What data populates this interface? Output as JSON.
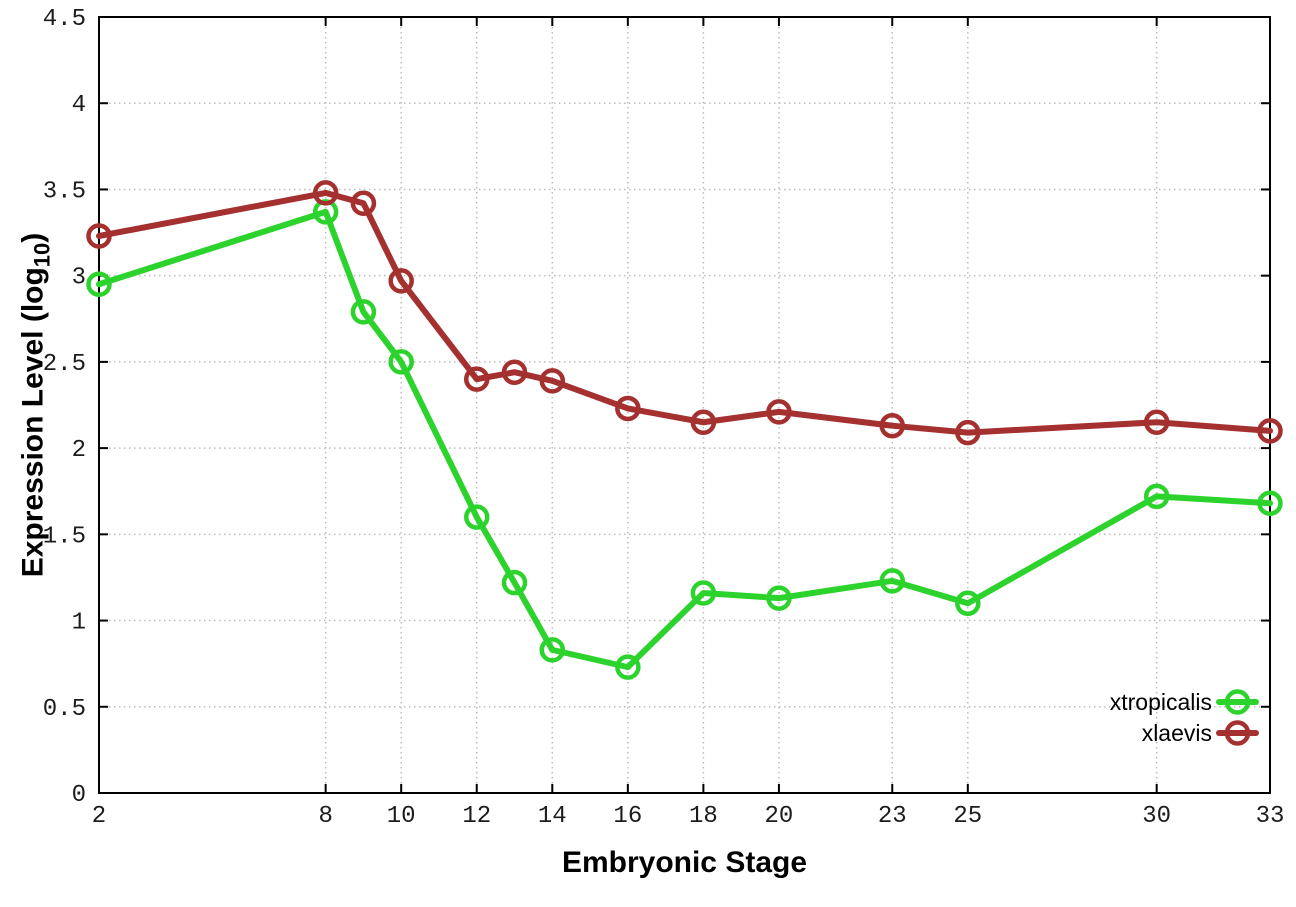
{
  "chart_data": {
    "type": "line",
    "title": "",
    "xlabel": "Embryonic Stage",
    "ylabel": "Expression Level (log10)",
    "ylabel_parts": {
      "pre": "Expression Level (log",
      "sub": "10",
      "post": ")"
    },
    "x": [
      2,
      8,
      9,
      10,
      12,
      13,
      14,
      16,
      18,
      20,
      23,
      25,
      30,
      33
    ],
    "series": [
      {
        "name": "xtropicalis",
        "color": "#2dd32d",
        "marker": "open-circle",
        "values": [
          2.95,
          3.37,
          2.79,
          2.5,
          1.6,
          1.22,
          0.83,
          0.73,
          1.16,
          1.13,
          1.23,
          1.1,
          1.72,
          1.68
        ]
      },
      {
        "name": "xlaevis",
        "color": "#a53030",
        "marker": "open-circle",
        "values": [
          3.23,
          3.48,
          3.42,
          2.97,
          2.4,
          2.44,
          2.39,
          2.23,
          2.15,
          2.21,
          2.13,
          2.09,
          2.15,
          2.1
        ]
      }
    ],
    "xlim": [
      2,
      33
    ],
    "ylim": [
      0,
      4.5
    ],
    "xticks": [
      2,
      8,
      10,
      12,
      14,
      16,
      18,
      20,
      23,
      25,
      30,
      33
    ],
    "xtick_labels": [
      "2",
      "8",
      "10",
      "12",
      "14",
      "16",
      "18",
      "20",
      "23",
      "25",
      "30",
      "33"
    ],
    "yticks": [
      0,
      0.5,
      1,
      1.5,
      2,
      2.5,
      3,
      3.5,
      4,
      4.5
    ],
    "ytick_labels": [
      "0",
      "0.5",
      "1",
      "1.5",
      "2",
      "2.5",
      "3",
      "3.5",
      "4",
      "4.5"
    ],
    "grid": true,
    "grid_style": "dotted",
    "legend_position": "inside-bottom-right",
    "colors": {
      "grid": "#bdbdbd",
      "border": "#000000",
      "tick_text": "#1c1c1c",
      "legend_text": "#000000",
      "background": "#ffffff"
    }
  }
}
